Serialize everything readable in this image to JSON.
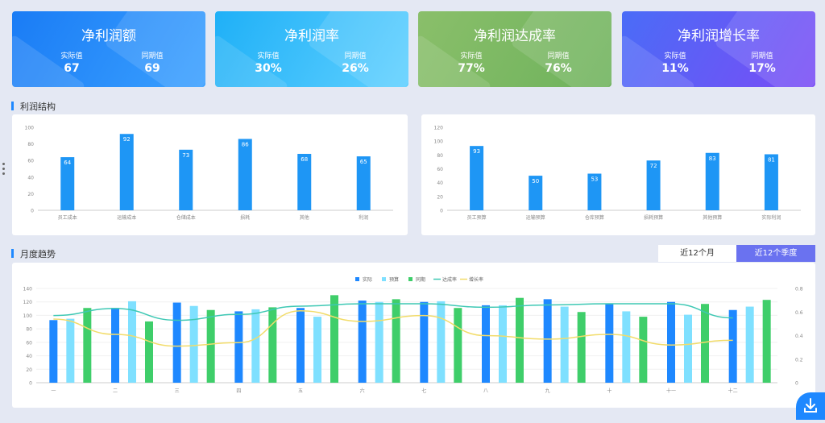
{
  "kpis": [
    {
      "title": "净利润额",
      "actual_label": "实际值",
      "actual": "67",
      "prior_label": "同期值",
      "prior": "69",
      "g1": "#1a7cf5",
      "g2": "#3aa0ff"
    },
    {
      "title": "净利润率",
      "actual_label": "实际值",
      "actual": "30%",
      "prior_label": "同期值",
      "prior": "26%",
      "g1": "#1fb0f7",
      "g2": "#5fd0ff"
    },
    {
      "title": "净利润达成率",
      "actual_label": "实际值",
      "actual": "77%",
      "prior_label": "同期值",
      "prior": "76%",
      "g1": "#8abf6a",
      "g2": "#6eb25c"
    },
    {
      "title": "净利润增长率",
      "actual_label": "实际值",
      "actual": "11%",
      "prior_label": "同期值",
      "prior": "17%",
      "g1": "#4a6cf7",
      "g2": "#7a4cf5"
    }
  ],
  "section_profit": "利润结构",
  "section_trend": "月度趋势",
  "tabs": [
    "近12个月",
    "近12个季度"
  ],
  "colors": {
    "bar": "#1e96f5",
    "actual": "#1e88ff",
    "budget": "#7fe0ff",
    "prior": "#3fce6a",
    "rate": "#3ec8b4",
    "growth": "#f2dc6a"
  },
  "chart_data": [
    {
      "type": "bar",
      "categories": [
        "员工成本",
        "运输成本",
        "仓储成本",
        "损耗",
        "其他",
        "利润"
      ],
      "values": [
        64,
        92,
        73,
        86,
        68,
        65
      ],
      "ylim": [
        0,
        100
      ],
      "yticks": [
        0,
        20,
        40,
        60,
        80,
        100
      ]
    },
    {
      "type": "bar",
      "categories": [
        "员工预算",
        "运输预算",
        "仓库预算",
        "损耗预算",
        "其他预算",
        "实际利润"
      ],
      "values": [
        93,
        50,
        53,
        72,
        83,
        81
      ],
      "ylim": [
        0,
        120
      ],
      "yticks": [
        0,
        20,
        40,
        60,
        80,
        100,
        120
      ]
    },
    {
      "type": "bar",
      "categories": [
        "一",
        "二",
        "三",
        "四",
        "五",
        "六",
        "七",
        "八",
        "九",
        "十",
        "十一",
        "十二"
      ],
      "legend": [
        "实际",
        "预算",
        "同期",
        "达成率",
        "增长率"
      ],
      "series": [
        {
          "name": "实际",
          "values": [
            93,
            111,
            119,
            106,
            111,
            122,
            120,
            115,
            124,
            117,
            120,
            108
          ]
        },
        {
          "name": "预算",
          "values": [
            95,
            121,
            114,
            109,
            98,
            120,
            121,
            115,
            113,
            106,
            101,
            113
          ]
        },
        {
          "name": "同期",
          "values": [
            111,
            91,
            108,
            112,
            130,
            124,
            111,
            126,
            105,
            98,
            117,
            123
          ]
        }
      ],
      "line_series": [
        {
          "name": "达成率",
          "values": [
            0.57,
            0.63,
            0.53,
            0.58,
            0.65,
            0.67,
            0.67,
            0.64,
            0.66,
            0.67,
            0.67,
            0.55
          ]
        },
        {
          "name": "增长率",
          "values": [
            0.54,
            0.41,
            0.31,
            0.34,
            0.61,
            0.52,
            0.57,
            0.4,
            0.37,
            0.41,
            0.32,
            0.36
          ]
        }
      ],
      "ylim": [
        0,
        140
      ],
      "yticks": [
        0,
        20,
        40,
        60,
        80,
        100,
        120,
        140
      ],
      "y2lim": [
        0,
        0.8
      ],
      "y2ticks": [
        0,
        0.2,
        0.4,
        0.6,
        0.8
      ]
    }
  ]
}
